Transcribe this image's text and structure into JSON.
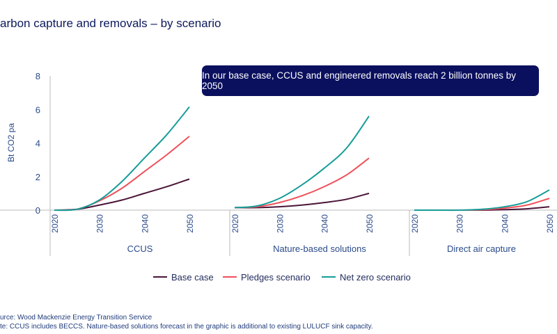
{
  "title": "arbon capture and removals – by scenario",
  "callout": "In our base case, CCUS and engineered removals reach 2 billion tonnes by 2050",
  "notes": {
    "source": "urce: Wood Mackenzie Energy  Transition Service",
    "note": "te:  CCUS  includes BECCS. Nature-based solutions forecast in the graphic is additional to existing LULUCF  sink capacity."
  },
  "chart_data": {
    "type": "line",
    "ylabel": "Bt CO2 pa",
    "ylim": [
      0,
      8
    ],
    "yticks": [
      "0",
      "2",
      "4",
      "6",
      "8"
    ],
    "x": [
      2020,
      2025,
      2030,
      2035,
      2040,
      2045,
      2050
    ],
    "xticks": [
      "2020",
      "2030",
      "2040",
      "2050"
    ],
    "grid": false,
    "legend_position": "bottom",
    "colors": {
      "Base case": "#4a1538",
      "Pledges scenario": "#f0505a",
      "Net zero scenario": "#159c98"
    },
    "legend": [
      "Base case",
      "Pledges scenario",
      "Net zero scenario"
    ],
    "panels": [
      {
        "label": "CCUS",
        "series": [
          {
            "name": "Base case",
            "values": [
              0,
              0.05,
              0.3,
              0.6,
              1.0,
              1.4,
              1.85
            ]
          },
          {
            "name": "Pledges scenario",
            "values": [
              0,
              0.05,
              0.55,
              1.3,
              2.3,
              3.3,
              4.4
            ]
          },
          {
            "name": "Net zero scenario",
            "values": [
              0,
              0.05,
              0.6,
              1.7,
              3.1,
              4.5,
              6.15
            ]
          }
        ]
      },
      {
        "label": "Nature-based solutions",
        "series": [
          {
            "name": "Base case",
            "values": [
              0.15,
              0.15,
              0.2,
              0.3,
              0.45,
              0.65,
              1.0
            ]
          },
          {
            "name": "Pledges scenario",
            "values": [
              0.15,
              0.2,
              0.45,
              0.85,
              1.4,
              2.1,
              3.1
            ]
          },
          {
            "name": "Net zero scenario",
            "values": [
              0.15,
              0.25,
              0.7,
              1.5,
              2.5,
              3.7,
              5.6
            ]
          }
        ]
      },
      {
        "label": "Direct air capture",
        "series": [
          {
            "name": "Base case",
            "values": [
              0,
              0,
              0,
              0,
              0.03,
              0.08,
              0.2
            ]
          },
          {
            "name": "Pledges scenario",
            "values": [
              0,
              0,
              0,
              0.02,
              0.12,
              0.3,
              0.7
            ]
          },
          {
            "name": "Net zero scenario",
            "values": [
              0,
              0,
              0,
              0.05,
              0.2,
              0.5,
              1.2
            ]
          }
        ]
      }
    ]
  }
}
